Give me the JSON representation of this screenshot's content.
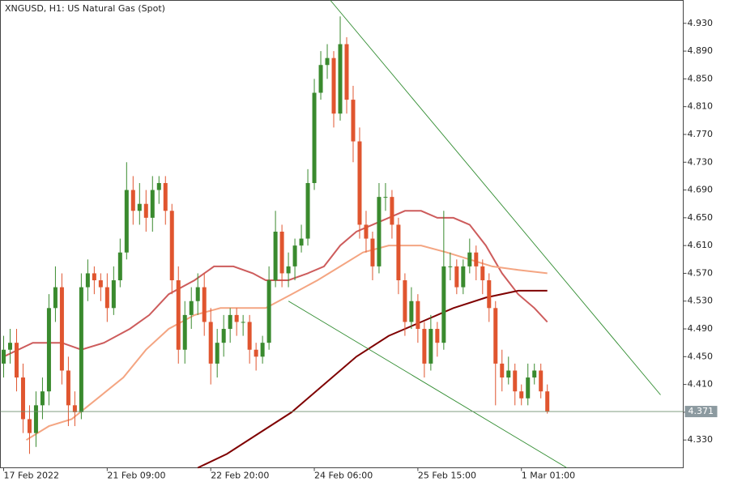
{
  "chart_data": {
    "type": "candlestick",
    "title": "XNGUSD, H1:  US Natural Gas (Spot)",
    "x": [
      1,
      3,
      5,
      7,
      9,
      11,
      13,
      15,
      17,
      19,
      21,
      23,
      25,
      27,
      29,
      31,
      33,
      35,
      37,
      39,
      41,
      43,
      45,
      47,
      49,
      51,
      53,
      55,
      57,
      59,
      61,
      63,
      65,
      67,
      69,
      71,
      73,
      75,
      77,
      79,
      81,
      83,
      85,
      87,
      89,
      91,
      93,
      95,
      97,
      99,
      101,
      103,
      105,
      107,
      109,
      111,
      113,
      115,
      117,
      119,
      121,
      123,
      125,
      127,
      129,
      131,
      133,
      135,
      137,
      139,
      141,
      143,
      145,
      147,
      149,
      151,
      153,
      155,
      157,
      159,
      161,
      163,
      165,
      167,
      169
    ],
    "open": [
      4.44,
      4.46,
      4.47,
      4.42,
      4.36,
      4.34,
      4.38,
      4.4,
      4.52,
      4.55,
      4.43,
      4.38,
      4.37,
      4.55,
      4.57,
      4.56,
      4.55,
      4.52,
      4.56,
      4.6,
      4.69,
      4.66,
      4.67,
      4.65,
      4.69,
      4.7,
      4.66,
      4.56,
      4.46,
      4.51,
      4.53,
      4.55,
      4.5,
      4.44,
      4.47,
      4.49,
      4.51,
      4.5,
      4.5,
      4.46,
      4.45,
      4.47,
      4.56,
      4.63,
      4.57,
      4.58,
      4.61,
      4.62,
      4.7,
      4.83,
      4.87,
      4.88,
      4.8,
      4.9,
      4.82,
      4.76,
      4.64,
      4.62,
      4.58,
      4.68,
      4.68,
      4.64,
      4.56,
      4.5,
      4.53,
      4.49,
      4.44,
      4.49,
      4.47,
      4.58,
      4.58,
      4.55,
      4.58,
      4.6,
      4.58,
      4.56,
      4.52,
      4.44,
      4.42,
      4.43,
      4.4,
      4.39,
      4.42,
      4.43,
      4.4
    ],
    "high": [
      4.48,
      4.49,
      4.49,
      4.44,
      4.38,
      4.4,
      4.42,
      4.54,
      4.58,
      4.57,
      4.45,
      4.4,
      4.57,
      4.59,
      4.58,
      4.57,
      4.57,
      4.58,
      4.62,
      4.73,
      4.71,
      4.7,
      4.69,
      4.71,
      4.71,
      4.71,
      4.67,
      4.58,
      4.53,
      4.55,
      4.57,
      4.57,
      4.52,
      4.49,
      4.51,
      4.52,
      4.52,
      4.51,
      4.51,
      4.47,
      4.48,
      4.58,
      4.66,
      4.64,
      4.6,
      4.62,
      4.64,
      4.72,
      4.85,
      4.89,
      4.9,
      4.89,
      4.94,
      4.91,
      4.84,
      4.78,
      4.66,
      4.63,
      4.7,
      4.7,
      4.69,
      4.65,
      4.57,
      4.55,
      4.54,
      4.5,
      4.51,
      4.5,
      4.66,
      4.6,
      4.59,
      4.59,
      4.62,
      4.61,
      4.59,
      4.57,
      4.53,
      4.46,
      4.45,
      4.44,
      4.41,
      4.44,
      4.44,
      4.44,
      4.41
    ],
    "low": [
      4.42,
      4.44,
      4.4,
      4.34,
      4.31,
      4.32,
      4.36,
      4.38,
      4.5,
      4.41,
      4.35,
      4.35,
      4.36,
      4.53,
      4.54,
      4.53,
      4.5,
      4.51,
      4.55,
      4.59,
      4.64,
      4.64,
      4.63,
      4.63,
      4.67,
      4.64,
      4.54,
      4.44,
      4.44,
      4.49,
      4.51,
      4.48,
      4.41,
      4.42,
      4.45,
      4.47,
      4.48,
      4.48,
      4.44,
      4.43,
      4.44,
      4.46,
      4.55,
      4.55,
      4.55,
      4.56,
      4.6,
      4.61,
      4.69,
      4.82,
      4.85,
      4.78,
      4.79,
      4.8,
      4.73,
      4.62,
      4.6,
      4.56,
      4.57,
      4.66,
      4.62,
      4.54,
      4.48,
      4.49,
      4.47,
      4.42,
      4.43,
      4.45,
      4.46,
      4.56,
      4.54,
      4.54,
      4.57,
      4.56,
      4.54,
      4.5,
      4.38,
      4.4,
      4.41,
      4.38,
      4.38,
      4.38,
      4.41,
      4.39,
      4.368
    ],
    "close": [
      4.46,
      4.47,
      4.42,
      4.36,
      4.34,
      4.38,
      4.4,
      4.52,
      4.55,
      4.43,
      4.38,
      4.37,
      4.55,
      4.57,
      4.56,
      4.55,
      4.52,
      4.56,
      4.6,
      4.69,
      4.66,
      4.67,
      4.65,
      4.69,
      4.7,
      4.66,
      4.56,
      4.46,
      4.51,
      4.53,
      4.55,
      4.5,
      4.44,
      4.47,
      4.49,
      4.51,
      4.5,
      4.5,
      4.46,
      4.45,
      4.47,
      4.56,
      4.63,
      4.57,
      4.58,
      4.61,
      4.62,
      4.7,
      4.83,
      4.87,
      4.88,
      4.8,
      4.9,
      4.82,
      4.76,
      4.64,
      4.62,
      4.58,
      4.68,
      4.68,
      4.64,
      4.56,
      4.5,
      4.53,
      4.49,
      4.44,
      4.49,
      4.47,
      4.58,
      4.58,
      4.55,
      4.58,
      4.6,
      4.58,
      4.56,
      4.52,
      4.44,
      4.42,
      4.43,
      4.4,
      4.39,
      4.42,
      4.43,
      4.4,
      4.371
    ],
    "up_color": "#3a8a2e",
    "down_color": "#e0552f",
    "lines": [
      {
        "color": "#cd5c5c",
        "x": [
          1,
          10,
          19,
          25,
          32,
          40,
          46,
          52,
          60,
          66,
          72,
          78,
          82,
          89,
          95,
          100,
          105,
          110,
          115,
          120,
          125,
          130,
          135,
          140,
          145,
          150,
          155,
          160,
          165,
          169
        ],
        "values": [
          4.45,
          4.47,
          4.47,
          4.46,
          4.47,
          4.49,
          4.51,
          4.54,
          4.56,
          4.58,
          4.58,
          4.57,
          4.56,
          4.56,
          4.57,
          4.58,
          4.61,
          4.63,
          4.64,
          4.65,
          4.66,
          4.66,
          4.65,
          4.65,
          4.64,
          4.61,
          4.57,
          4.54,
          4.52,
          4.5
        ]
      },
      {
        "color": "#f4a582",
        "x": [
          8,
          15,
          22,
          30,
          38,
          45,
          52,
          60,
          68,
          75,
          82,
          90,
          98,
          105,
          112,
          120,
          124,
          130,
          138,
          145,
          152,
          160,
          169
        ],
        "values": [
          4.33,
          4.35,
          4.36,
          4.39,
          4.42,
          4.46,
          4.49,
          4.51,
          4.52,
          4.52,
          4.52,
          4.54,
          4.56,
          4.58,
          4.6,
          4.61,
          4.61,
          4.61,
          4.6,
          4.59,
          4.58,
          4.575,
          4.57
        ]
      },
      {
        "color": "#7f0000",
        "x": [
          61,
          70,
          80,
          90,
          100,
          110,
          120,
          130,
          140,
          150,
          160,
          169
        ],
        "values": [
          4.29,
          4.31,
          4.34,
          4.37,
          4.41,
          4.45,
          4.48,
          4.5,
          4.52,
          4.535,
          4.545,
          4.545
        ]
      },
      {
        "color": "#2e8b2e",
        "x": [
          102,
          204
        ],
        "values": [
          4.963,
          4.395
        ]
      },
      {
        "color": "#2e8b2e",
        "x": [
          89,
          175
        ],
        "values": [
          4.53,
          4.29
        ]
      }
    ],
    "current_price": 4.371,
    "xlim": [
      0,
      211
    ],
    "ylim": [
      4.29,
      4.963
    ],
    "xticks": [
      {
        "value": 1,
        "label": "17 Feb 2022"
      },
      {
        "value": 33,
        "label": "21 Feb 09:00"
      },
      {
        "value": 65,
        "label": "22 Feb 20:00"
      },
      {
        "value": 97,
        "label": "24 Feb 06:00"
      },
      {
        "value": 129,
        "label": "25 Feb 15:00"
      },
      {
        "value": 161,
        "label": "1 Mar 01:00"
      }
    ],
    "yticks": [
      {
        "value": 4.33,
        "label": "4.330"
      },
      {
        "value": 4.37,
        "label": "4.370"
      },
      {
        "value": 4.41,
        "label": "4.410"
      },
      {
        "value": 4.45,
        "label": "4.450"
      },
      {
        "value": 4.49,
        "label": "4.490"
      },
      {
        "value": 4.53,
        "label": "4.530"
      },
      {
        "value": 4.57,
        "label": "4.570"
      },
      {
        "value": 4.61,
        "label": "4.610"
      },
      {
        "value": 4.65,
        "label": "4.650"
      },
      {
        "value": 4.69,
        "label": "4.690"
      },
      {
        "value": 4.73,
        "label": "4.730"
      },
      {
        "value": 4.77,
        "label": "4.770"
      },
      {
        "value": 4.81,
        "label": "4.810"
      },
      {
        "value": 4.85,
        "label": "4.850"
      },
      {
        "value": 4.89,
        "label": "4.890"
      },
      {
        "value": 4.93,
        "label": "4.930"
      }
    ]
  }
}
